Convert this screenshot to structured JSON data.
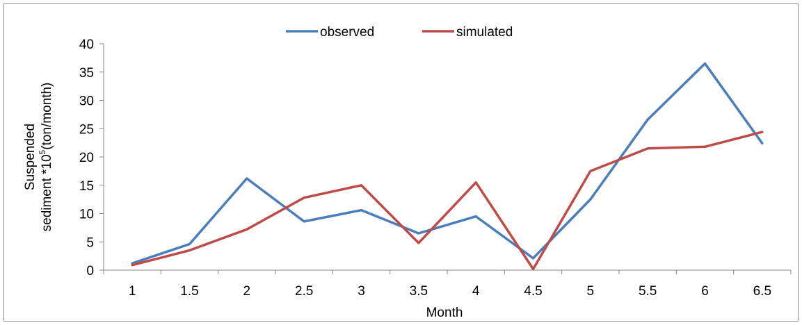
{
  "chart_data": {
    "type": "line",
    "title": "",
    "xlabel": "Month",
    "ylabel_lines": [
      "Suspended",
      "sediment  *10",
      "(ton/month)"
    ],
    "ylabel_superscript": "5",
    "ylim": [
      0,
      40
    ],
    "yticks": [
      0,
      5,
      10,
      15,
      20,
      25,
      30,
      35,
      40
    ],
    "xticks": [
      "1",
      "1.5",
      "2",
      "2.5",
      "3",
      "3.5",
      "4",
      "4.5",
      "5",
      "5.5",
      "6",
      "6.5"
    ],
    "x": [
      1,
      1.5,
      2,
      2.5,
      3,
      3.5,
      4,
      4.5,
      5,
      5.5,
      6,
      6.5
    ],
    "grid": false,
    "legend_position": "top",
    "series": [
      {
        "name": "observed",
        "color": "#4a7ebb",
        "values": [
          1.2,
          4.6,
          16.2,
          8.6,
          10.6,
          6.5,
          9.5,
          2.1,
          12.5,
          26.6,
          36.5,
          22.4
        ]
      },
      {
        "name": "simulated",
        "color": "#be4b48",
        "values": [
          0.9,
          3.5,
          7.2,
          12.8,
          15.0,
          4.8,
          15.5,
          0.2,
          17.5,
          21.5,
          21.8,
          24.4
        ]
      }
    ]
  }
}
